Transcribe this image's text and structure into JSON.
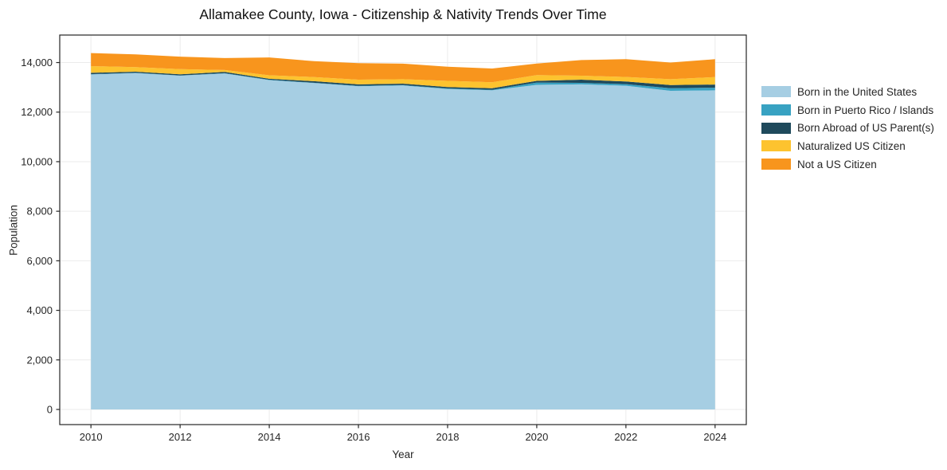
{
  "chart_data": {
    "type": "area",
    "stacked": true,
    "title": "Allamakee County, Iowa - Citizenship & Nativity Trends Over Time",
    "xlabel": "Year",
    "ylabel": "Population",
    "grid": true,
    "legend_position": "right",
    "x": [
      2010,
      2011,
      2012,
      2013,
      2014,
      2015,
      2016,
      2017,
      2018,
      2019,
      2020,
      2021,
      2022,
      2023,
      2024
    ],
    "series": [
      {
        "name": "Born in the United States",
        "color": "#a6cee3",
        "values": [
          13520,
          13575,
          13470,
          13560,
          13290,
          13170,
          13045,
          13075,
          12935,
          12880,
          13100,
          13120,
          13065,
          12860,
          12880
        ]
      },
      {
        "name": "Born in Puerto Rico / Islands",
        "color": "#38a2c2",
        "values": [
          10,
          10,
          10,
          10,
          15,
          15,
          15,
          15,
          20,
          20,
          95,
          60,
          65,
          105,
          105
        ]
      },
      {
        "name": "Born Abroad of US Parent(s)",
        "color": "#1f4a5c",
        "values": [
          55,
          45,
          45,
          50,
          40,
          65,
          60,
          60,
          60,
          65,
          65,
          130,
          105,
          130,
          130
        ]
      },
      {
        "name": "Naturalized US Citizen",
        "color": "#fdc32f",
        "values": [
          270,
          185,
          210,
          80,
          140,
          165,
          190,
          180,
          245,
          240,
          235,
          160,
          185,
          235,
          300
        ]
      },
      {
        "name": "Not a US Citizen",
        "color": "#f8951d",
        "values": [
          530,
          515,
          505,
          480,
          720,
          640,
          665,
          625,
          570,
          555,
          465,
          630,
          720,
          670,
          720
        ]
      }
    ],
    "xticks": [
      2010,
      2012,
      2014,
      2016,
      2018,
      2020,
      2022,
      2024
    ],
    "xtick_labels": [
      "2010",
      "2012",
      "2014",
      "2016",
      "2018",
      "2020",
      "2022",
      "2024"
    ],
    "yticks": [
      0,
      2000,
      4000,
      6000,
      8000,
      10000,
      12000,
      14000
    ],
    "ytick_labels": [
      "0",
      "2,000",
      "4,000",
      "6,000",
      "8,000",
      "10,000",
      "12,000",
      "14,000"
    ],
    "xlim": [
      2009.3,
      2024.7
    ],
    "ylim": [
      -611,
      15110
    ],
    "frame_color": "#262626",
    "gridline_color": "#ebebeb"
  }
}
